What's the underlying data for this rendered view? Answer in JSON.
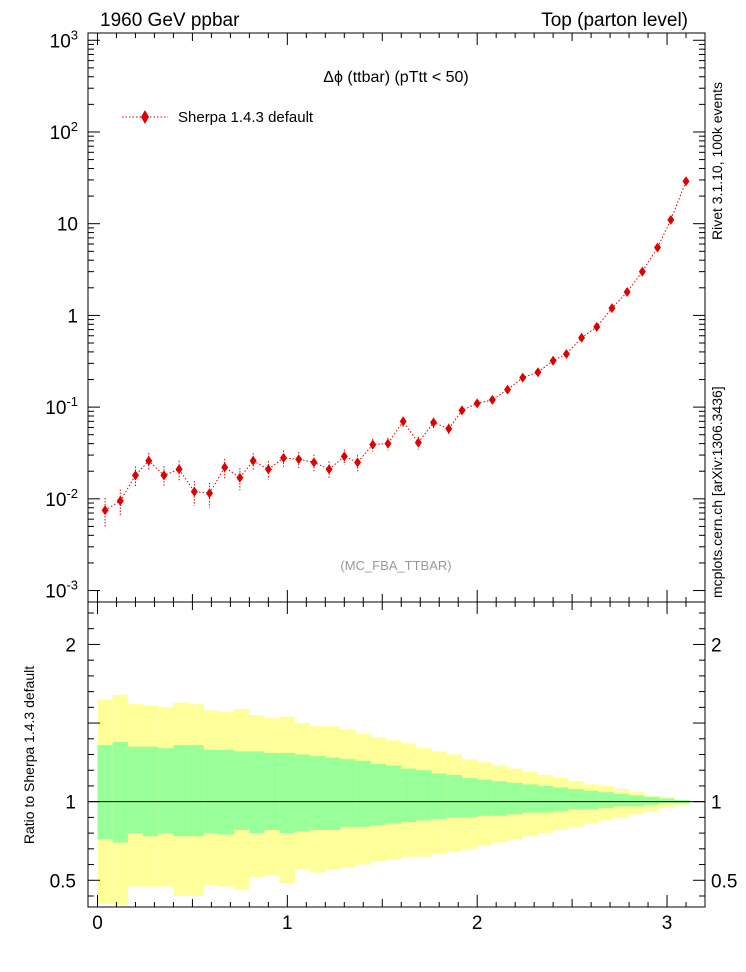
{
  "header": {
    "left": "1960 GeV ppbar",
    "right": "Top (parton level)"
  },
  "side_labels": {
    "rivet": "Rivet 3.1.10,  100k events",
    "source": "mcplots.cern.ch [arXiv:1306.3436]"
  },
  "colors": {
    "marker": "#e00000",
    "band_inner": "#99ff99",
    "band_outer": "#ffff99",
    "watermark": "#999999"
  },
  "chart_data": [
    {
      "type": "scatter",
      "title": "Δϕ (ttbar) (pTtt < 50)",
      "watermark": "(MC_FBA_TTBAR)",
      "yscale": "log",
      "ylim": [
        0.00075,
        1200
      ],
      "xlim": [
        -0.05,
        3.2
      ],
      "legend_position": "top-left",
      "y_tick_labels": [
        "10^-3",
        "10^-2",
        "10^-1",
        "1",
        "10",
        "10^2",
        "10^3"
      ],
      "series": [
        {
          "name": "Sherpa 1.4.3 default",
          "line_style": "dotted",
          "marker": "diamond",
          "x": [
            0.04,
            0.12,
            0.2,
            0.27,
            0.35,
            0.43,
            0.51,
            0.59,
            0.67,
            0.75,
            0.82,
            0.9,
            0.98,
            1.06,
            1.14,
            1.22,
            1.3,
            1.37,
            1.45,
            1.53,
            1.61,
            1.69,
            1.77,
            1.85,
            1.92,
            2.0,
            2.08,
            2.16,
            2.24,
            2.32,
            2.4,
            2.47,
            2.55,
            2.63,
            2.71,
            2.79,
            2.87,
            2.95,
            3.02,
            3.1
          ],
          "y": [
            0.0075,
            0.0095,
            0.018,
            0.026,
            0.018,
            0.021,
            0.012,
            0.0115,
            0.022,
            0.017,
            0.026,
            0.021,
            0.028,
            0.027,
            0.025,
            0.021,
            0.029,
            0.025,
            0.039,
            0.04,
            0.07,
            0.041,
            0.068,
            0.058,
            0.092,
            0.11,
            0.12,
            0.155,
            0.21,
            0.24,
            0.32,
            0.38,
            0.57,
            0.75,
            1.2,
            1.8,
            3.0,
            5.5,
            11.0,
            29.0
          ],
          "yerr_rel": [
            0.36,
            0.33,
            0.25,
            0.22,
            0.26,
            0.24,
            0.3,
            0.3,
            0.24,
            0.27,
            0.21,
            0.23,
            0.2,
            0.2,
            0.21,
            0.22,
            0.19,
            0.2,
            0.16,
            0.16,
            0.13,
            0.16,
            0.13,
            0.14,
            0.11,
            0.1,
            0.1,
            0.09,
            0.08,
            0.07,
            0.06,
            0.055,
            0.045,
            0.04,
            0.03,
            0.025,
            0.02,
            0.015,
            0.012,
            0.01
          ]
        }
      ]
    },
    {
      "type": "area",
      "ylabel": "Ratio to Sherpa 1.4.3 default",
      "ylim": [
        0.33,
        2.27
      ],
      "xlim": [
        -0.05,
        3.2
      ],
      "x_tick_labels": [
        "0",
        "1",
        "2",
        "3"
      ],
      "y_tick_labels": [
        "0.5",
        "1",
        "2"
      ],
      "reference_line": 1,
      "bins_x": [
        0.0,
        0.08,
        0.16,
        0.24,
        0.32,
        0.4,
        0.48,
        0.56,
        0.64,
        0.72,
        0.8,
        0.88,
        0.96,
        1.04,
        1.12,
        1.2,
        1.28,
        1.36,
        1.44,
        1.52,
        1.6,
        1.68,
        1.76,
        1.84,
        1.92,
        2.0,
        2.08,
        2.16,
        2.24,
        2.32,
        2.4,
        2.48,
        2.56,
        2.64,
        2.72,
        2.8,
        2.88,
        2.96,
        3.04,
        3.12,
        3.2
      ],
      "band_inner": {
        "upper": [
          1.36,
          1.38,
          1.35,
          1.35,
          1.34,
          1.36,
          1.36,
          1.33,
          1.33,
          1.32,
          1.32,
          1.31,
          1.31,
          1.3,
          1.29,
          1.28,
          1.27,
          1.26,
          1.24,
          1.23,
          1.21,
          1.2,
          1.18,
          1.17,
          1.15,
          1.14,
          1.13,
          1.12,
          1.11,
          1.1,
          1.09,
          1.08,
          1.07,
          1.06,
          1.05,
          1.04,
          1.03,
          1.02,
          1.01,
          1.0
        ],
        "lower": [
          0.76,
          0.74,
          0.8,
          0.78,
          0.8,
          0.78,
          0.78,
          0.8,
          0.79,
          0.82,
          0.8,
          0.82,
          0.8,
          0.81,
          0.82,
          0.82,
          0.84,
          0.84,
          0.85,
          0.86,
          0.87,
          0.88,
          0.89,
          0.9,
          0.9,
          0.91,
          0.91,
          0.92,
          0.93,
          0.93,
          0.94,
          0.95,
          0.95,
          0.96,
          0.97,
          0.97,
          0.98,
          0.99,
          0.99,
          1.0
        ]
      },
      "band_outer": {
        "upper": [
          1.65,
          1.68,
          1.62,
          1.61,
          1.6,
          1.63,
          1.62,
          1.58,
          1.57,
          1.59,
          1.55,
          1.53,
          1.54,
          1.5,
          1.48,
          1.48,
          1.46,
          1.43,
          1.41,
          1.39,
          1.37,
          1.34,
          1.32,
          1.3,
          1.27,
          1.25,
          1.23,
          1.21,
          1.19,
          1.17,
          1.15,
          1.13,
          1.11,
          1.1,
          1.08,
          1.06,
          1.04,
          1.03,
          1.01,
          1.0
        ],
        "lower": [
          0.35,
          0.34,
          0.46,
          0.46,
          0.46,
          0.4,
          0.4,
          0.47,
          0.46,
          0.44,
          0.52,
          0.53,
          0.48,
          0.57,
          0.55,
          0.57,
          0.58,
          0.6,
          0.62,
          0.63,
          0.65,
          0.65,
          0.67,
          0.68,
          0.7,
          0.72,
          0.74,
          0.76,
          0.78,
          0.8,
          0.82,
          0.84,
          0.86,
          0.88,
          0.9,
          0.92,
          0.94,
          0.96,
          0.98,
          1.0
        ]
      }
    }
  ]
}
